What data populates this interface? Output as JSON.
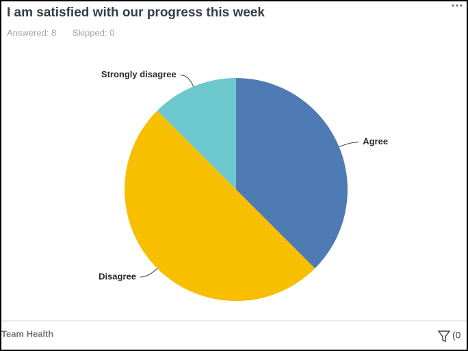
{
  "header": {
    "title": "I am satisfied with our progress this week",
    "answered": "Answered: 8",
    "skipped": "Skipped: 0"
  },
  "chart_data": {
    "type": "pie",
    "categories": [
      "Agree",
      "Disagree",
      "Strongly disagree"
    ],
    "values": [
      3,
      4,
      1
    ],
    "colors": [
      "#4e7bb4",
      "#f8be00",
      "#6dc8cd"
    ]
  },
  "footer": {
    "label": "Team Health",
    "filter_count": "(0"
  }
}
